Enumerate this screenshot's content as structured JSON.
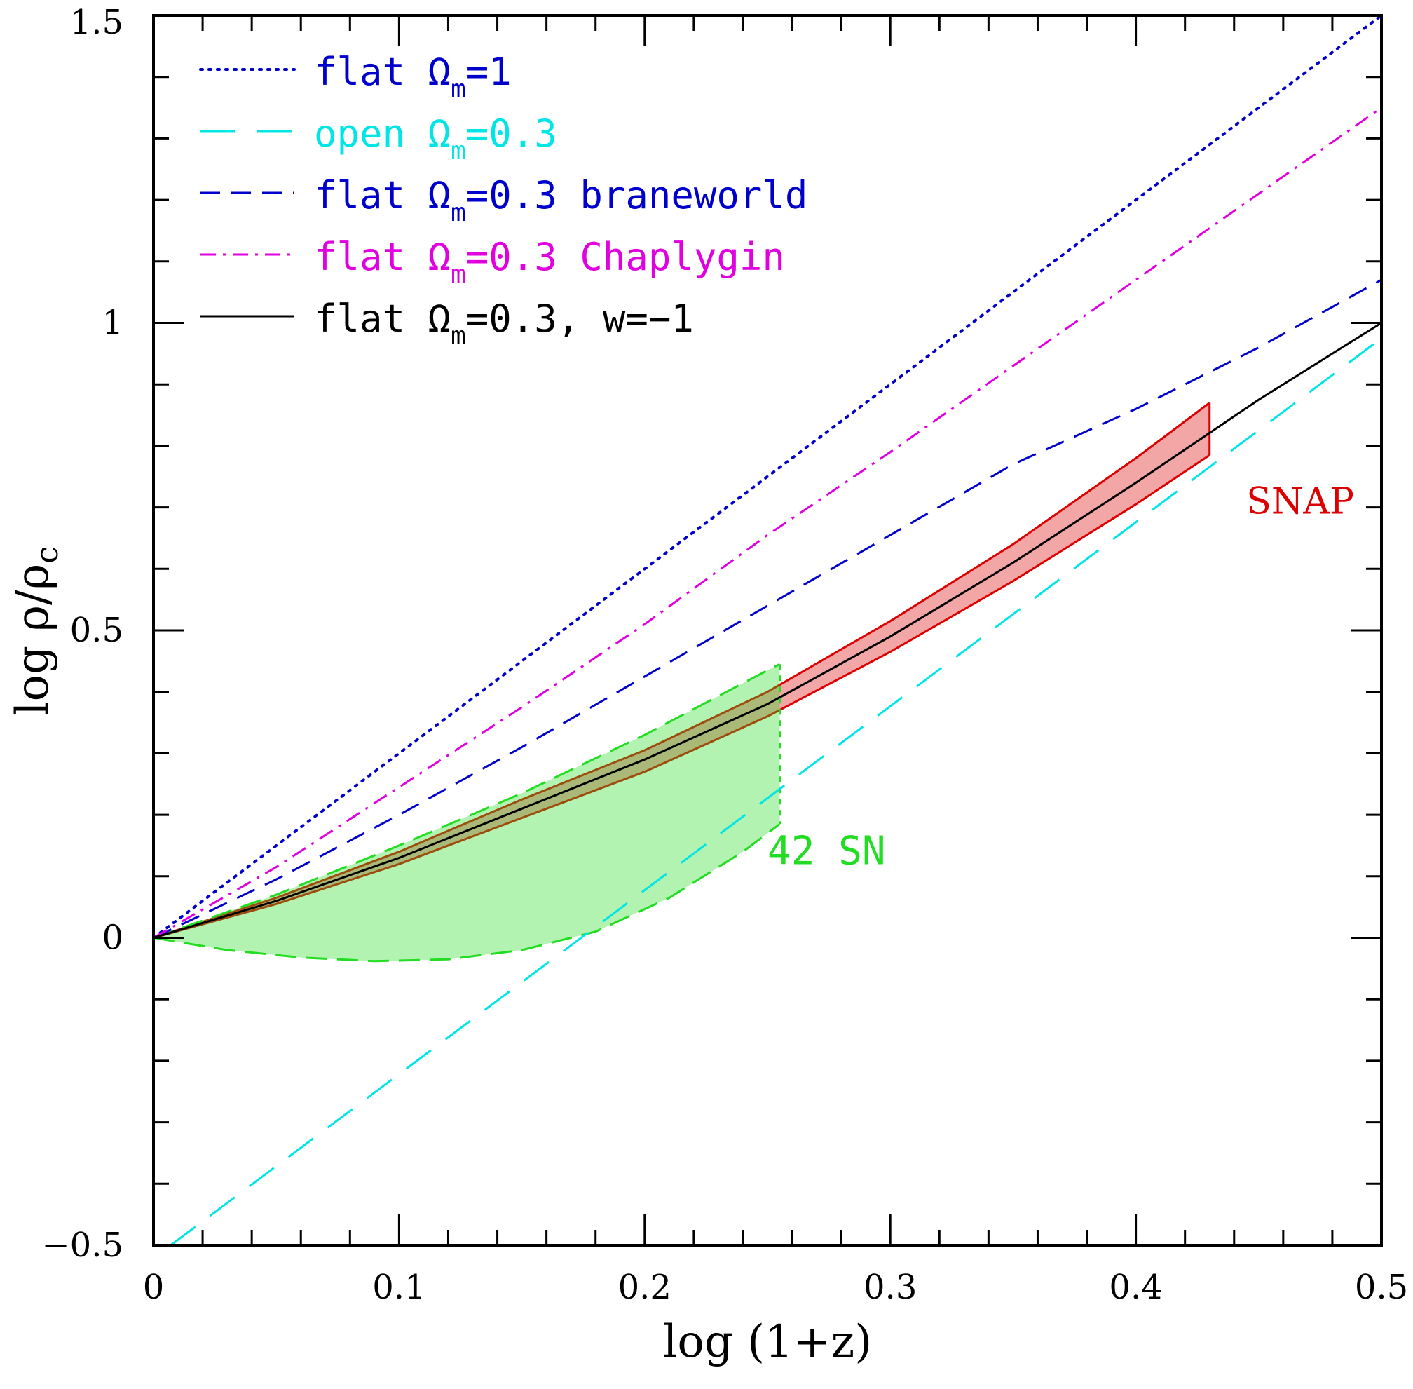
{
  "chart_data": {
    "type": "line",
    "xlabel": "log (1+z)",
    "ylabel": {
      "pre": "log ρ/ρ",
      "sub": "c"
    },
    "xlim": [
      0,
      0.5
    ],
    "ylim": [
      -0.5,
      1.5
    ],
    "xticks": [
      "0",
      "0.1",
      "0.2",
      "0.3",
      "0.4",
      "0.5"
    ],
    "yticks": [
      "−0.5",
      "0",
      "0.5",
      "1",
      "1.5"
    ],
    "legend_position": "top-left",
    "legend": [
      {
        "pre": "flat Ω",
        "sub": "m",
        "post": "=1",
        "color": "#0000cc",
        "style": "dotted"
      },
      {
        "pre": "open Ω",
        "sub": "m",
        "post": "=0.3",
        "color": "#00e5e5",
        "style": "long-dash"
      },
      {
        "pre": "flat Ω",
        "sub": "m",
        "post": "=0.3 braneworld",
        "color": "#0000cc",
        "style": "dashed"
      },
      {
        "pre": "flat Ω",
        "sub": "m",
        "post": "=0.3 Chaplygin",
        "color": "#e000e0",
        "style": "dash-dot"
      },
      {
        "pre": "flat Ω",
        "sub": "m",
        "post": "=0.3, w=−1",
        "color": "#000000",
        "style": "solid"
      }
    ],
    "series": [
      {
        "color": "#0000cc",
        "style": "dotted",
        "x": [
          0,
          0.5
        ],
        "y": [
          0,
          1.5
        ]
      },
      {
        "color": "#00e5e5",
        "style": "long-dash",
        "x": [
          0.007,
          0.5
        ],
        "y": [
          -0.5,
          0.975
        ]
      },
      {
        "color": "#0000cc",
        "style": "dashed",
        "x": [
          0,
          0.05,
          0.1,
          0.15,
          0.2,
          0.25,
          0.3,
          0.35,
          0.4,
          0.45,
          0.5
        ],
        "y": [
          0,
          0.095,
          0.2,
          0.31,
          0.425,
          0.54,
          0.655,
          0.77,
          0.86,
          0.96,
          1.07
        ]
      },
      {
        "color": "#e000e0",
        "style": "dash-dot",
        "x": [
          0,
          0.05,
          0.1,
          0.15,
          0.2,
          0.25,
          0.3,
          0.35,
          0.4,
          0.45,
          0.5
        ],
        "y": [
          0,
          0.115,
          0.245,
          0.375,
          0.51,
          0.655,
          0.79,
          0.93,
          1.07,
          1.21,
          1.35
        ]
      },
      {
        "color": "#000000",
        "style": "solid",
        "x": [
          0,
          0.05,
          0.1,
          0.15,
          0.2,
          0.25,
          0.3,
          0.35,
          0.4,
          0.45,
          0.5
        ],
        "y": [
          0,
          0.06,
          0.13,
          0.21,
          0.29,
          0.38,
          0.49,
          0.61,
          0.74,
          0.875,
          1.0
        ]
      }
    ],
    "bands": [
      {
        "label": "SNAP",
        "color": "#dd0000",
        "upper": {
          "x": [
            0,
            0.05,
            0.1,
            0.15,
            0.2,
            0.25,
            0.3,
            0.35,
            0.4,
            0.43
          ],
          "y": [
            0,
            0.065,
            0.14,
            0.225,
            0.305,
            0.4,
            0.515,
            0.64,
            0.78,
            0.87
          ]
        },
        "lower": {
          "x": [
            0,
            0.05,
            0.1,
            0.15,
            0.2,
            0.25,
            0.3,
            0.35,
            0.4,
            0.43
          ],
          "y": [
            0,
            0.055,
            0.12,
            0.195,
            0.27,
            0.36,
            0.465,
            0.58,
            0.705,
            0.785
          ]
        }
      },
      {
        "label": "42 SN",
        "color": "#22dd22",
        "upper": {
          "x": [
            0,
            0.05,
            0.1,
            0.15,
            0.2,
            0.25,
            0.255
          ],
          "y": [
            0,
            0.07,
            0.15,
            0.235,
            0.33,
            0.435,
            0.445
          ]
        },
        "lower": {
          "x": [
            0,
            0.03,
            0.06,
            0.09,
            0.12,
            0.15,
            0.18,
            0.21,
            0.24,
            0.255
          ],
          "y": [
            0,
            -0.02,
            -0.032,
            -0.038,
            -0.035,
            -0.02,
            0.01,
            0.065,
            0.14,
            0.185
          ]
        }
      }
    ],
    "annotations": [
      {
        "text": "SNAP",
        "x": 0.445,
        "y": 0.69,
        "color": "#dd0000"
      },
      {
        "text": "42 SN",
        "x": 0.25,
        "y": 0.12,
        "color": "#22dd22"
      }
    ]
  }
}
